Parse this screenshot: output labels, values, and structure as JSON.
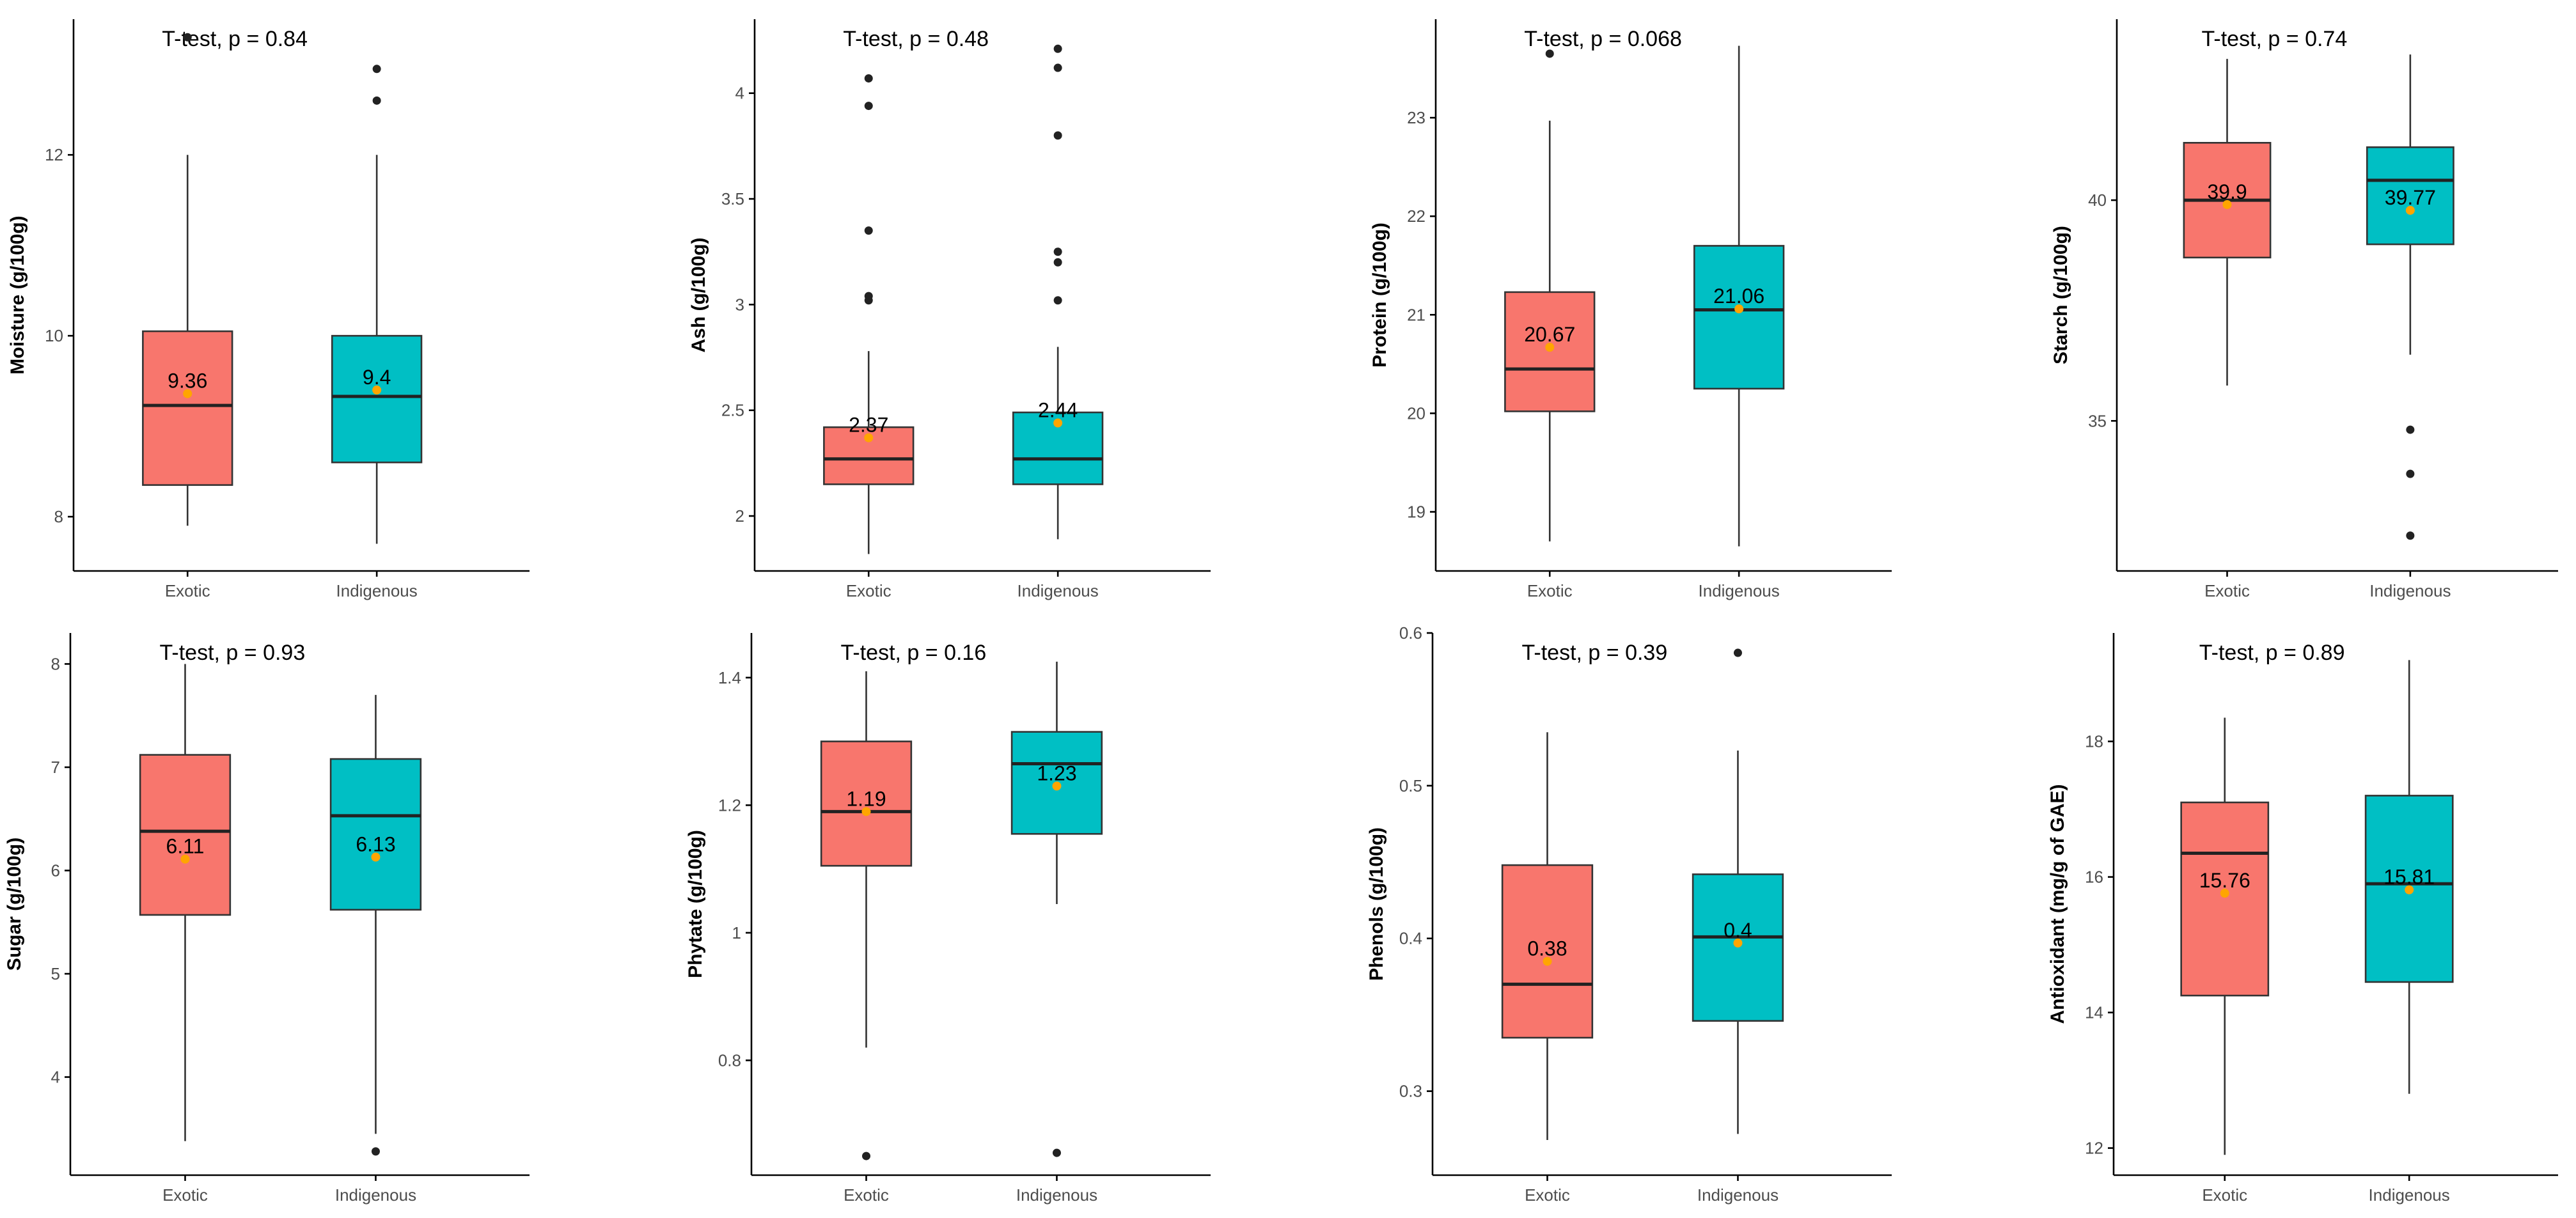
{
  "colors": {
    "exotic": "#F8766D",
    "indigenous": "#00BFC4",
    "mean_point": "#FFA500",
    "outlier": "#222222"
  },
  "chart_data": [
    {
      "type": "boxplot",
      "title": "T-test, p = 0.84",
      "ylabel": "Moisture (g/100g)",
      "categories": [
        "Exotic",
        "Indigenous"
      ],
      "ylim": [
        7.4,
        13.5
      ],
      "yticks": [
        8,
        10,
        12
      ],
      "series": [
        {
          "name": "Exotic",
          "whisker_low": 7.9,
          "q1": 8.35,
          "median": 9.23,
          "q3": 10.05,
          "whisker_high": 12.0,
          "mean": 9.36,
          "mean_label": "9.36",
          "outliers": [
            13.3
          ]
        },
        {
          "name": "Indigenous",
          "whisker_low": 7.7,
          "q1": 8.6,
          "median": 9.33,
          "q3": 10.0,
          "whisker_high": 12.0,
          "mean": 9.4,
          "mean_label": "9.4",
          "outliers": [
            12.6,
            12.95
          ]
        }
      ]
    },
    {
      "type": "boxplot",
      "title": "T-test, p = 0.48",
      "ylabel": "Ash (g/100g)",
      "categories": [
        "Exotic",
        "Indigenous"
      ],
      "ylim": [
        1.74,
        4.35
      ],
      "yticks": [
        2.0,
        2.5,
        3.0,
        3.5,
        4.0
      ],
      "series": [
        {
          "name": "Exotic",
          "whisker_low": 1.82,
          "q1": 2.15,
          "median": 2.27,
          "q3": 2.42,
          "whisker_high": 2.78,
          "mean": 2.37,
          "mean_label": "2.37",
          "outliers": [
            3.02,
            3.04,
            3.35,
            3.94,
            4.07
          ]
        },
        {
          "name": "Indigenous",
          "whisker_low": 1.89,
          "q1": 2.15,
          "median": 2.27,
          "q3": 2.49,
          "whisker_high": 2.8,
          "mean": 2.44,
          "mean_label": "2.44",
          "outliers": [
            3.02,
            3.2,
            3.25,
            3.8,
            4.12,
            4.21
          ]
        }
      ]
    },
    {
      "type": "boxplot",
      "title": "T-test, p = 0.068",
      "ylabel": "Protein (g/100g)",
      "categories": [
        "Exotic",
        "Indigenous"
      ],
      "ylim": [
        18.4,
        24.0
      ],
      "yticks": [
        19,
        20,
        21,
        22,
        23
      ],
      "series": [
        {
          "name": "Exotic",
          "whisker_low": 18.7,
          "q1": 20.02,
          "median": 20.45,
          "q3": 21.23,
          "whisker_high": 22.97,
          "mean": 20.67,
          "mean_label": "20.67",
          "outliers": [
            23.65
          ]
        },
        {
          "name": "Indigenous",
          "whisker_low": 18.65,
          "q1": 20.25,
          "median": 21.05,
          "q3": 21.7,
          "whisker_high": 23.73,
          "mean": 21.06,
          "mean_label": "21.06",
          "outliers": []
        }
      ]
    },
    {
      "type": "boxplot",
      "title": "T-test, p = 0.74",
      "ylabel": "Starch (g/100g)",
      "categories": [
        "Exotic",
        "Indigenous"
      ],
      "ylim": [
        31.6,
        44.1
      ],
      "yticks": [
        35,
        40
      ],
      "series": [
        {
          "name": "Exotic",
          "whisker_low": 35.8,
          "q1": 38.7,
          "median": 40.0,
          "q3": 41.3,
          "whisker_high": 43.2,
          "mean": 39.9,
          "mean_label": "39.9",
          "outliers": []
        },
        {
          "name": "Indigenous",
          "whisker_low": 36.5,
          "q1": 39.0,
          "median": 40.45,
          "q3": 41.2,
          "whisker_high": 43.3,
          "mean": 39.77,
          "mean_label": "39.77",
          "outliers": [
            32.4,
            33.8,
            34.8
          ]
        }
      ]
    },
    {
      "type": "boxplot",
      "title": "T-test, p = 0.93",
      "ylabel": "Sugar (g/100g)",
      "categories": [
        "Exotic",
        "Indigenous"
      ],
      "ylim": [
        3.05,
        8.3
      ],
      "yticks": [
        4,
        5,
        6,
        7,
        8
      ],
      "series": [
        {
          "name": "Exotic",
          "whisker_low": 3.38,
          "q1": 5.57,
          "median": 6.38,
          "q3": 7.12,
          "whisker_high": 8.0,
          "mean": 6.11,
          "mean_label": "6.11",
          "outliers": []
        },
        {
          "name": "Indigenous",
          "whisker_low": 3.45,
          "q1": 5.62,
          "median": 6.53,
          "q3": 7.08,
          "whisker_high": 7.7,
          "mean": 6.13,
          "mean_label": "6.13",
          "outliers": [
            3.28
          ]
        }
      ]
    },
    {
      "type": "boxplot",
      "title": "T-test, p = 0.16",
      "ylabel": "Phytate (g/100g)",
      "categories": [
        "Exotic",
        "Indigenous"
      ],
      "ylim": [
        0.62,
        1.47
      ],
      "yticks": [
        0.8,
        1.0,
        1.2,
        1.4
      ],
      "series": [
        {
          "name": "Exotic",
          "whisker_low": 0.82,
          "q1": 1.105,
          "median": 1.19,
          "q3": 1.3,
          "whisker_high": 1.41,
          "mean": 1.19,
          "mean_label": "1.19",
          "outliers": [
            0.65
          ]
        },
        {
          "name": "Indigenous",
          "whisker_low": 1.045,
          "q1": 1.155,
          "median": 1.265,
          "q3": 1.315,
          "whisker_high": 1.425,
          "mean": 1.23,
          "mean_label": "1.23",
          "outliers": [
            0.655
          ]
        }
      ]
    },
    {
      "type": "boxplot",
      "title": "T-test, p = 0.39",
      "ylabel": "Phenols (g/100g)",
      "categories": [
        "Exotic",
        "Indigenous"
      ],
      "ylim": [
        0.245,
        0.6
      ],
      "yticks": [
        0.3,
        0.4,
        0.5,
        0.6
      ],
      "series": [
        {
          "name": "Exotic",
          "whisker_low": 0.268,
          "q1": 0.335,
          "median": 0.37,
          "q3": 0.448,
          "whisker_high": 0.535,
          "mean": 0.385,
          "mean_label": "0.38",
          "outliers": []
        },
        {
          "name": "Indigenous",
          "whisker_low": 0.272,
          "q1": 0.346,
          "median": 0.401,
          "q3": 0.442,
          "whisker_high": 0.523,
          "mean": 0.397,
          "mean_label": "0.4",
          "outliers": [
            0.587
          ]
        }
      ]
    },
    {
      "type": "boxplot",
      "title": "T-test, p = 0.89",
      "ylabel": "Antioxidant (mg/g of GAE)",
      "categories": [
        "Exotic",
        "Indigenous"
      ],
      "ylim": [
        11.6,
        19.6
      ],
      "yticks": [
        12,
        14,
        16,
        18
      ],
      "series": [
        {
          "name": "Exotic",
          "whisker_low": 11.9,
          "q1": 14.25,
          "median": 16.35,
          "q3": 17.1,
          "whisker_high": 18.35,
          "mean": 15.76,
          "mean_label": "15.76",
          "outliers": []
        },
        {
          "name": "Indigenous",
          "whisker_low": 12.8,
          "q1": 14.45,
          "median": 15.9,
          "q3": 17.2,
          "whisker_high": 19.2,
          "mean": 15.81,
          "mean_label": "15.81",
          "outliers": []
        }
      ]
    }
  ]
}
